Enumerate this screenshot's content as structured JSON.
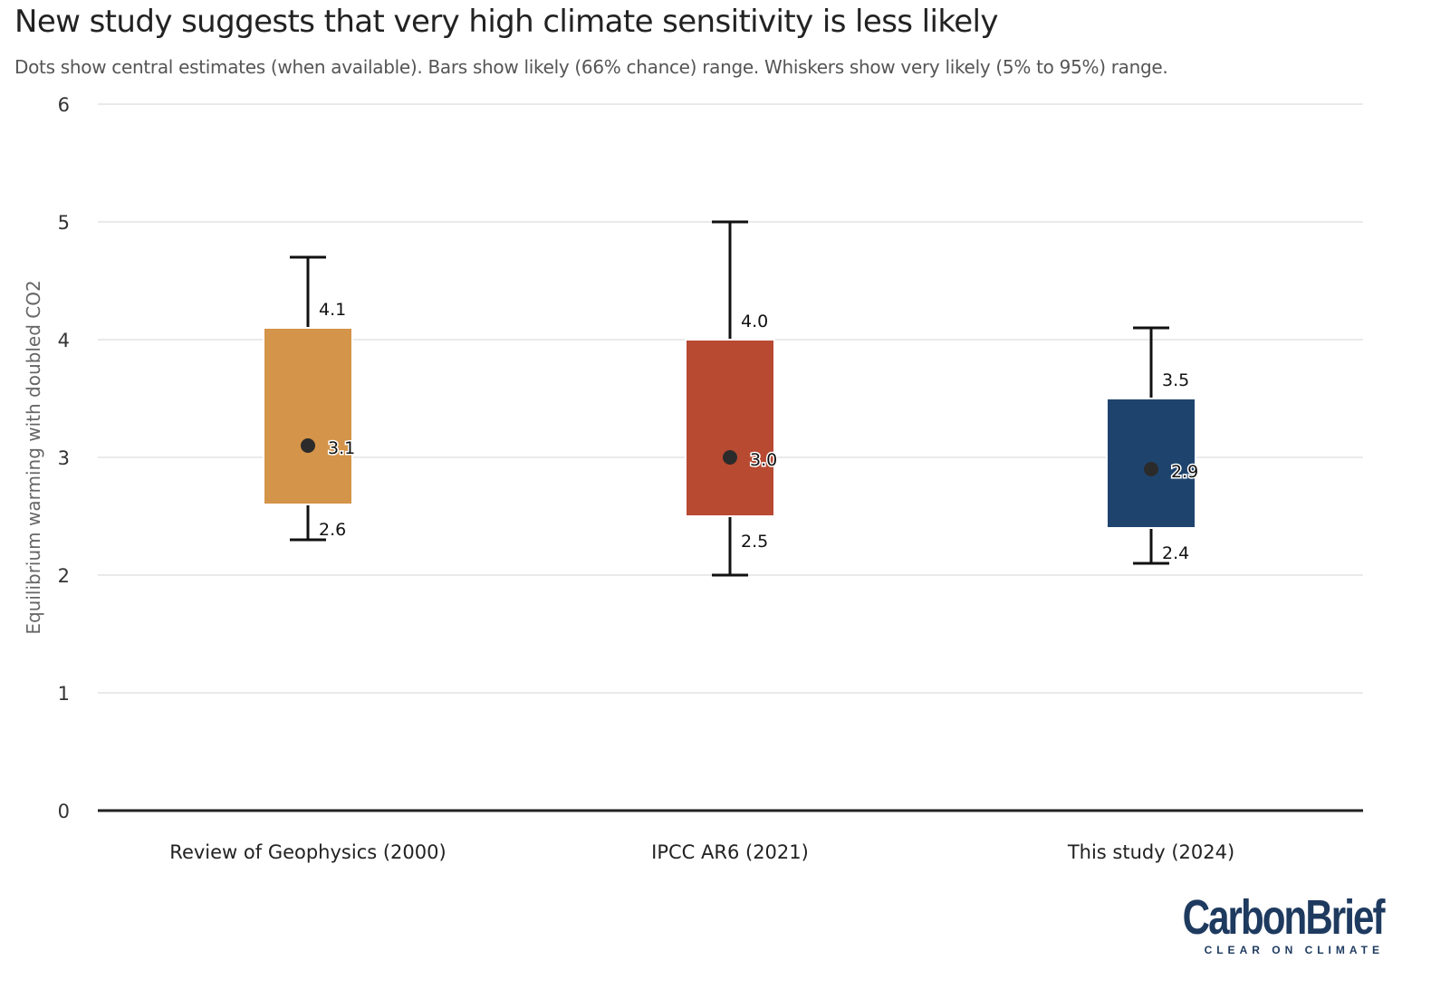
{
  "title": "New study suggests that very high climate sensitivity is less likely",
  "subtitle": "Dots show central estimates (when available). Bars show likely (66% chance) range. Whiskers show very likely (5% to 95%) range.",
  "logo": {
    "main": "CarbonBrief",
    "tagline": "CLEAR ON CLIMATE"
  },
  "chart_data": {
    "type": "boxplot",
    "ylabel": "Equilibrium warming with doubled CO2",
    "xlabel": "",
    "ylim": [
      0,
      6
    ],
    "yticks": [
      0,
      1,
      2,
      3,
      4,
      5,
      6
    ],
    "grid": true,
    "categories": [
      "Review of Geophysics (2000)",
      "IPCC AR6 (2021)",
      "This study (2024)"
    ],
    "series": [
      {
        "name": "Review of Geophysics (2000)",
        "color": "#d4944a",
        "whisker_low": 2.3,
        "likely_low": 2.6,
        "central": 3.1,
        "likely_high": 4.1,
        "whisker_high": 4.7,
        "labels": {
          "high": "4.1",
          "central": "3.1",
          "low": "2.6"
        }
      },
      {
        "name": "IPCC AR6 (2021)",
        "color": "#b84a32",
        "whisker_low": 2.0,
        "likely_low": 2.5,
        "central": 3.0,
        "likely_high": 4.0,
        "whisker_high": 5.0,
        "labels": {
          "high": "4.0",
          "central": "3.0",
          "low": "2.5"
        }
      },
      {
        "name": "This study (2024)",
        "color": "#1e446e",
        "whisker_low": 2.1,
        "likely_low": 2.4,
        "central": 2.9,
        "likely_high": 3.5,
        "whisker_high": 4.1,
        "labels": {
          "high": "3.5",
          "central": "2.9",
          "low": "2.4"
        }
      }
    ]
  }
}
